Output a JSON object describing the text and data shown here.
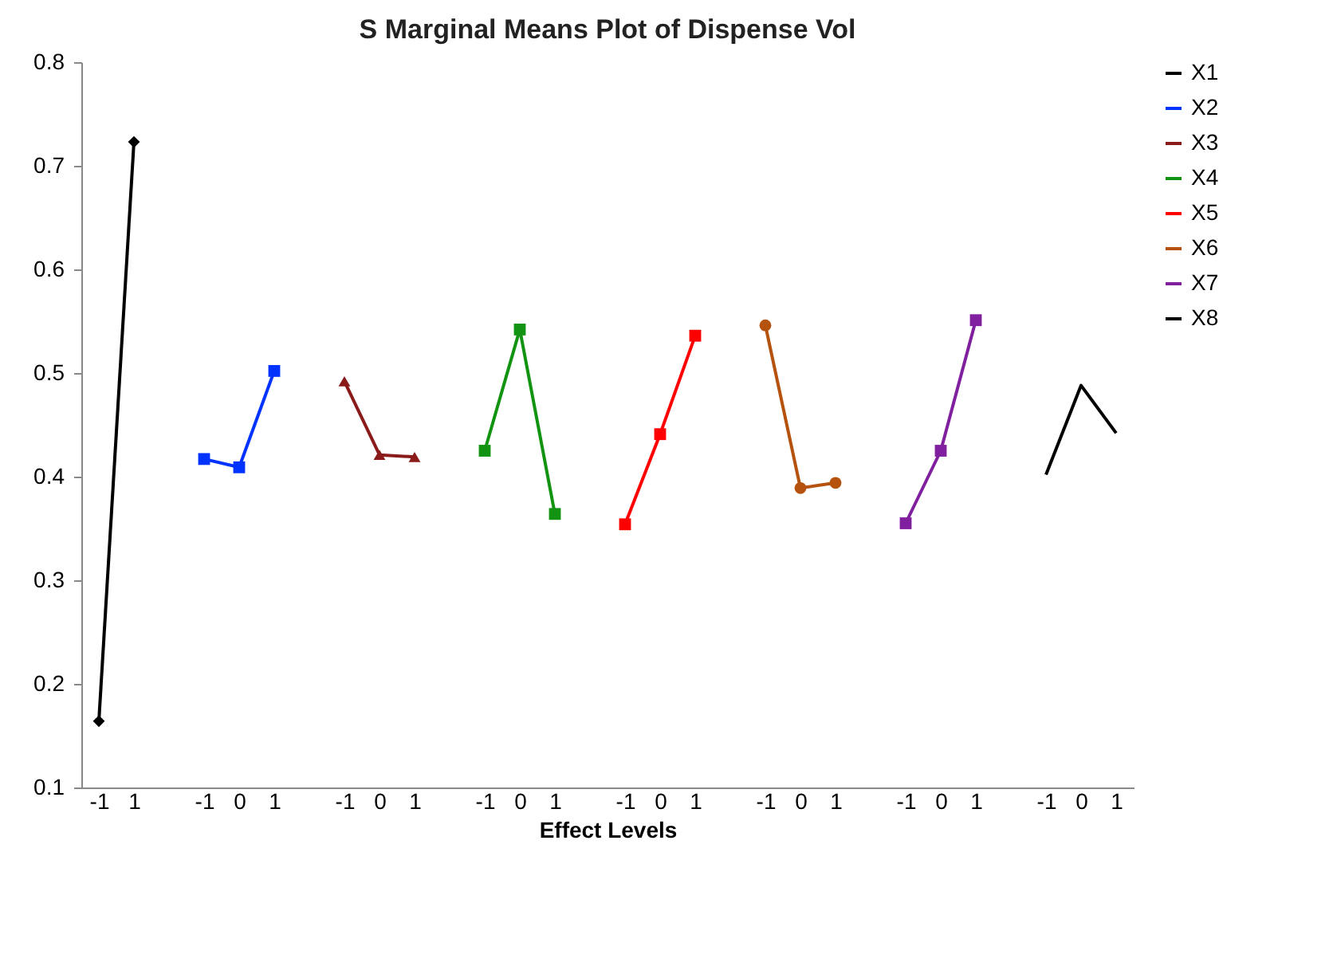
{
  "chart_data": {
    "type": "line",
    "title": "S Marginal Means Plot of Dispense Vol",
    "xlabel": "Effect Levels",
    "categories": [
      "-1",
      "1",
      null,
      "-1",
      "0",
      "1",
      null,
      "-1",
      "0",
      "1",
      null,
      "-1",
      "0",
      "1",
      null,
      "-1",
      "0",
      "1",
      null,
      "-1",
      "0",
      "1",
      null,
      "-1",
      "0",
      "1",
      null,
      "-1",
      "0",
      "1"
    ],
    "ylim": [
      0.1,
      0.8
    ],
    "yticks": [
      0.1,
      0.2,
      0.3,
      0.4,
      0.5,
      0.6,
      0.7,
      0.8
    ],
    "legend": "right",
    "series": [
      {
        "name": "X1",
        "color": "#000000",
        "marker": "diamond",
        "values": [
          0.164,
          0.723,
          null,
          null,
          null,
          null,
          null,
          null,
          null,
          null,
          null,
          null,
          null,
          null,
          null,
          null,
          null,
          null,
          null,
          null,
          null,
          null,
          null,
          null,
          null,
          null,
          null,
          null,
          null,
          null
        ]
      },
      {
        "name": "X2",
        "color": "#0033ff",
        "marker": "square",
        "values": [
          null,
          null,
          null,
          0.417,
          0.409,
          0.502,
          null,
          null,
          null,
          null,
          null,
          null,
          null,
          null,
          null,
          null,
          null,
          null,
          null,
          null,
          null,
          null,
          null,
          null,
          null,
          null,
          null,
          null,
          null,
          null
        ]
      },
      {
        "name": "X3",
        "color": "#8b1a1a",
        "marker": "triangle",
        "values": [
          null,
          null,
          null,
          null,
          null,
          null,
          null,
          0.492,
          0.421,
          0.419,
          null,
          null,
          null,
          null,
          null,
          null,
          null,
          null,
          null,
          null,
          null,
          null,
          null,
          null,
          null,
          null,
          null,
          null,
          null,
          null
        ]
      },
      {
        "name": "X4",
        "color": "#129412",
        "marker": "square",
        "values": [
          null,
          null,
          null,
          null,
          null,
          null,
          null,
          null,
          null,
          null,
          null,
          0.425,
          0.542,
          0.364,
          null,
          null,
          null,
          null,
          null,
          null,
          null,
          null,
          null,
          null,
          null,
          null,
          null,
          null,
          null,
          null
        ]
      },
      {
        "name": "X5",
        "color": "#ff0000",
        "marker": "square",
        "values": [
          null,
          null,
          null,
          null,
          null,
          null,
          null,
          null,
          null,
          null,
          null,
          null,
          null,
          null,
          null,
          0.354,
          0.441,
          0.536,
          null,
          null,
          null,
          null,
          null,
          null,
          null,
          null,
          null,
          null,
          null,
          null
        ]
      },
      {
        "name": "X6",
        "color": "#b5520e",
        "marker": "circle",
        "values": [
          null,
          null,
          null,
          null,
          null,
          null,
          null,
          null,
          null,
          null,
          null,
          null,
          null,
          null,
          null,
          null,
          null,
          null,
          null,
          0.546,
          0.389,
          0.394,
          null,
          null,
          null,
          null,
          null,
          null,
          null,
          null
        ]
      },
      {
        "name": "X7",
        "color": "#80209f",
        "marker": "square",
        "values": [
          null,
          null,
          null,
          null,
          null,
          null,
          null,
          null,
          null,
          null,
          null,
          null,
          null,
          null,
          null,
          null,
          null,
          null,
          null,
          null,
          null,
          null,
          null,
          0.355,
          0.425,
          0.551,
          null,
          null,
          null,
          null
        ]
      },
      {
        "name": "X8",
        "color": "#000000",
        "marker": "none",
        "values": [
          null,
          null,
          null,
          null,
          null,
          null,
          null,
          null,
          null,
          null,
          null,
          null,
          null,
          null,
          null,
          null,
          null,
          null,
          null,
          null,
          null,
          null,
          null,
          null,
          null,
          null,
          null,
          0.402,
          0.488,
          0.442
        ]
      }
    ]
  }
}
